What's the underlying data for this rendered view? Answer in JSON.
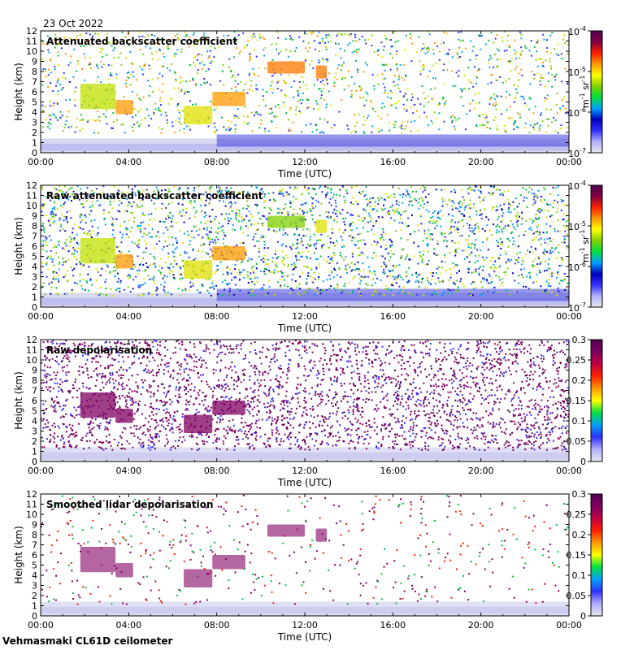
{
  "date": "23 Oct 2022",
  "footer": "Vehmasmaki CL61D ceilometer",
  "colors": {
    "backscatter_scale": [
      "#e6e6f0",
      "#b0b0ff",
      "#3030ff",
      "#0000c0",
      "#00a0ff",
      "#00e040",
      "#80d000",
      "#ffff00",
      "#ff9900",
      "#ff2000",
      "#800040",
      "#500050"
    ],
    "depol_scale": [
      "#e6e6f0",
      "#b0b0ff",
      "#3030ff",
      "#00a0ff",
      "#00e040",
      "#ffff00",
      "#ff9900",
      "#ff2000",
      "#c00040",
      "#800060",
      "#500050"
    ]
  },
  "chart_data": [
    {
      "type": "heatmap",
      "title": "Attenuated backscatter coefficient",
      "xlabel": "Time (UTC)",
      "ylabel": "Height (km)",
      "xticks": [
        "00:00",
        "04:00",
        "08:00",
        "12:00",
        "16:00",
        "20:00",
        "00:00"
      ],
      "xlim": [
        0,
        24
      ],
      "ylim": [
        0,
        12
      ],
      "yticks": [
        "0",
        "1",
        "2",
        "3",
        "4",
        "5",
        "6",
        "7",
        "8",
        "9",
        "10",
        "11",
        "12"
      ],
      "colorbar": {
        "scale": "log",
        "ticks": [
          "10",
          "10",
          "10",
          "10"
        ],
        "exponents": [
          "-7",
          "-6",
          "-5",
          "-4"
        ],
        "unit_base": "m",
        "unit_exp1": "-1",
        "unit_mid": " sr",
        "unit_exp2": "-1"
      }
    },
    {
      "type": "heatmap",
      "title": "Raw attenuated backscatter coefficient",
      "xlabel": "Time (UTC)",
      "ylabel": "Height (km)",
      "xticks": [
        "00:00",
        "04:00",
        "08:00",
        "12:00",
        "16:00",
        "20:00",
        "00:00"
      ],
      "xlim": [
        0,
        24
      ],
      "ylim": [
        0,
        12
      ],
      "yticks": [
        "0",
        "1",
        "2",
        "3",
        "4",
        "5",
        "6",
        "7",
        "8",
        "9",
        "10",
        "11",
        "12"
      ],
      "colorbar": {
        "scale": "log",
        "ticks": [
          "10",
          "10",
          "10",
          "10"
        ],
        "exponents": [
          "-7",
          "-6",
          "-5",
          "-4"
        ],
        "unit_base": "m",
        "unit_exp1": "-1",
        "unit_mid": " sr",
        "unit_exp2": "-1"
      }
    },
    {
      "type": "heatmap",
      "title": "Raw depolarisation",
      "xlabel": "Time (UTC)",
      "ylabel": "Height (km)",
      "xticks": [
        "00:00",
        "04:00",
        "08:00",
        "12:00",
        "16:00",
        "20:00",
        "00:00"
      ],
      "xlim": [
        0,
        24
      ],
      "ylim": [
        0,
        12
      ],
      "yticks": [
        "0",
        "1",
        "2",
        "3",
        "4",
        "5",
        "6",
        "7",
        "8",
        "9",
        "10",
        "11",
        "12"
      ],
      "colorbar": {
        "scale": "linear",
        "range": [
          0,
          0.3
        ],
        "ticks": [
          "0",
          "0.05",
          "0.1",
          "0.15",
          "0.2",
          "0.25",
          "0.3"
        ]
      }
    },
    {
      "type": "heatmap",
      "title": "Smoothed lidar depolarisation",
      "xlabel": "Time (UTC)",
      "ylabel": "Height (km)",
      "xticks": [
        "00:00",
        "04:00",
        "08:00",
        "12:00",
        "16:00",
        "20:00",
        "00:00"
      ],
      "xlim": [
        0,
        24
      ],
      "ylim": [
        0,
        12
      ],
      "yticks": [
        "0",
        "1",
        "2",
        "3",
        "4",
        "5",
        "6",
        "7",
        "8",
        "9",
        "10",
        "11",
        "12"
      ],
      "colorbar": {
        "scale": "linear",
        "range": [
          0,
          0.3
        ],
        "ticks": [
          "0",
          "0.05",
          "0.1",
          "0.15",
          "0.2",
          "0.25",
          "0.3"
        ]
      }
    }
  ]
}
